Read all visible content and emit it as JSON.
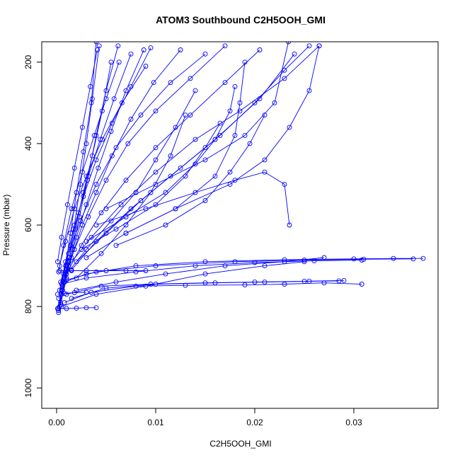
{
  "chart_data": {
    "type": "scatter",
    "title": "ATOM3 Southbound C2H5OOH_GMI",
    "xlabel": "C2H5OOH_GMI",
    "ylabel": "Pressure (mbar)",
    "xlim": [
      -0.0015,
      0.0385
    ],
    "ylim": [
      1050,
      150
    ],
    "y_reversed": true,
    "x_ticks": [
      0.0,
      0.01,
      0.02,
      0.03
    ],
    "x_tick_labels": [
      "0.00",
      "0.01",
      "0.02",
      "0.03"
    ],
    "y_ticks": [
      200,
      400,
      600,
      800,
      1000
    ],
    "y_tick_labels": [
      "200",
      "400",
      "600",
      "800",
      "1000"
    ],
    "grid": false,
    "legend": "none",
    "line_color": "#0000ff",
    "marker": "open-circle",
    "series": [
      {
        "x": [
          0.0002,
          0.0005,
          0.0009,
          0.0014,
          0.002,
          0.0027,
          0.0035,
          0.004
        ],
        "y": [
          810,
          760,
          700,
          620,
          520,
          420,
          300,
          150
        ]
      },
      {
        "x": [
          0.0003,
          0.0008,
          0.0013,
          0.0018,
          0.0024,
          0.003,
          0.0036,
          0.0043
        ],
        "y": [
          800,
          740,
          680,
          600,
          500,
          400,
          290,
          160
        ]
      },
      {
        "x": [
          0.0001,
          0.0006,
          0.0012,
          0.0019,
          0.0027,
          0.0036,
          0.0046,
          0.0055
        ],
        "y": [
          805,
          750,
          690,
          610,
          520,
          430,
          320,
          200
        ]
      },
      {
        "x": [
          0.0004,
          0.001,
          0.0016,
          0.0023,
          0.0031,
          0.004,
          0.005,
          0.0062
        ],
        "y": [
          795,
          730,
          660,
          580,
          490,
          380,
          270,
          160
        ]
      },
      {
        "x": [
          0.0002,
          0.0007,
          0.0014,
          0.0022,
          0.0032,
          0.0044,
          0.0058,
          0.0075
        ],
        "y": [
          780,
          720,
          650,
          570,
          480,
          390,
          290,
          180
        ]
      },
      {
        "x": [
          0.0005,
          0.0012,
          0.002,
          0.003,
          0.0042,
          0.0055,
          0.007,
          0.0088
        ],
        "y": [
          770,
          700,
          630,
          550,
          460,
          370,
          270,
          170
        ]
      },
      {
        "x": [
          0.0003,
          0.0009,
          0.0017,
          0.0027,
          0.004,
          0.0056,
          0.0075,
          0.0095
        ],
        "y": [
          760,
          690,
          610,
          530,
          440,
          350,
          260,
          165
        ]
      },
      {
        "x": [
          0.0006,
          0.0015,
          0.0026,
          0.004,
          0.0056,
          0.0075,
          0.0098,
          0.0125
        ],
        "y": [
          750,
          680,
          600,
          520,
          430,
          340,
          250,
          170
        ]
      },
      {
        "x": [
          0.0004,
          0.0012,
          0.0024,
          0.004,
          0.006,
          0.0085,
          0.0115,
          0.015
        ],
        "y": [
          740,
          670,
          590,
          500,
          410,
          330,
          250,
          180
        ]
      },
      {
        "x": [
          0.0008,
          0.0018,
          0.0032,
          0.005,
          0.0072,
          0.01,
          0.0135,
          0.017
        ],
        "y": [
          730,
          660,
          580,
          490,
          400,
          320,
          240,
          160
        ]
      },
      {
        "x": [
          0.0002,
          0.0007,
          0.0015,
          0.0026,
          0.0038,
          0.005,
          0.0063
        ],
        "y": [
          715,
          650,
          560,
          470,
          380,
          290,
          200
        ]
      },
      {
        "x": [
          0.0001,
          0.0005,
          0.0011,
          0.0018,
          0.0026,
          0.0034,
          0.0041
        ],
        "y": [
          690,
          630,
          550,
          460,
          360,
          260,
          170
        ]
      },
      {
        "x": [
          0.0003,
          0.0009,
          0.0018,
          0.003,
          0.0046,
          0.0066,
          0.009
        ],
        "y": [
          700,
          640,
          560,
          480,
          390,
          300,
          210
        ]
      },
      {
        "x": [
          0.001,
          0.0025,
          0.0045,
          0.007,
          0.01,
          0.0135,
          0.017,
          0.0205
        ],
        "y": [
          720,
          650,
          570,
          490,
          410,
          330,
          250,
          170
        ]
      },
      {
        "x": [
          0.0015,
          0.004,
          0.0075,
          0.0115,
          0.016,
          0.0205,
          0.024
        ],
        "y": [
          710,
          640,
          560,
          480,
          390,
          290,
          180
        ]
      },
      {
        "x": [
          0.0012,
          0.0035,
          0.0065,
          0.01,
          0.014,
          0.0185,
          0.023,
          0.0265
        ],
        "y": [
          700,
          630,
          550,
          470,
          390,
          320,
          240,
          160
        ]
      },
      {
        "x": [
          0.002,
          0.005,
          0.0085,
          0.0125,
          0.0165,
          0.02,
          0.023,
          0.0255
        ],
        "y": [
          690,
          620,
          540,
          460,
          380,
          300,
          220,
          160
        ]
      },
      {
        "x": [
          0.003,
          0.007,
          0.012,
          0.0175,
          0.021,
          0.0235,
          0.0255,
          0.0265
        ],
        "y": [
          680,
          620,
          560,
          500,
          440,
          360,
          270,
          160
        ]
      },
      {
        "x": [
          0.0008,
          0.003,
          0.008,
          0.015,
          0.023,
          0.03,
          0.034,
          0.037
        ],
        "y": [
          740,
          720,
          700,
          690,
          685,
          683,
          682,
          682
        ]
      },
      {
        "x": [
          0.001,
          0.004,
          0.01,
          0.018,
          0.025,
          0.031,
          0.036
        ],
        "y": [
          735,
          715,
          700,
          690,
          686,
          684,
          683
        ]
      },
      {
        "x": [
          0.0005,
          0.003,
          0.008,
          0.014,
          0.02,
          0.026,
          0.0308
        ],
        "y": [
          745,
          730,
          715,
          700,
          692,
          688,
          686
        ]
      },
      {
        "x": [
          0.002,
          0.006,
          0.011,
          0.017,
          0.023,
          0.027
        ],
        "y": [
          760,
          740,
          720,
          700,
          690,
          680
        ]
      },
      {
        "x": [
          0.001,
          0.0045,
          0.0095,
          0.015,
          0.02,
          0.025,
          0.029
        ],
        "y": [
          770,
          750,
          745,
          742,
          740,
          738,
          736
        ]
      },
      {
        "x": [
          0.0008,
          0.0035,
          0.008,
          0.013,
          0.019,
          0.023,
          0.027,
          0.0308
        ],
        "y": [
          790,
          765,
          750,
          748,
          747,
          745,
          742,
          745
        ]
      },
      {
        "x": [
          0.0015,
          0.005,
          0.01,
          0.016,
          0.021,
          0.0255,
          0.0285
        ],
        "y": [
          780,
          755,
          745,
          742,
          740,
          738,
          737
        ]
      },
      {
        "x": [
          0.0005,
          0.004,
          0.009,
          0.015,
          0.021,
          0.025
        ],
        "y": [
          800,
          770,
          750,
          720,
          700,
          690
        ]
      },
      {
        "x": [
          0.0002,
          0.001,
          0.002,
          0.003,
          0.004
        ],
        "y": [
          805,
          805,
          804,
          803,
          803
        ]
      },
      {
        "x": [
          0.0003,
          0.0015,
          0.003,
          0.005,
          0.007,
          0.009
        ],
        "y": [
          712,
          712,
          712,
          712,
          712,
          712
        ]
      },
      {
        "x": [
          0.0001,
          0.0008,
          0.0018,
          0.003
        ],
        "y": [
          770,
          768,
          766,
          765
        ]
      },
      {
        "x": [
          0.004,
          0.009,
          0.014,
          0.018,
          0.021,
          0.023,
          0.0235
        ],
        "y": [
          600,
          560,
          520,
          490,
          470,
          500,
          600
        ]
      },
      {
        "x": [
          0.005,
          0.01,
          0.015,
          0.019,
          0.022,
          0.0234
        ],
        "y": [
          560,
          500,
          440,
          380,
          300,
          150
        ]
      },
      {
        "x": [
          0.007,
          0.012,
          0.016,
          0.018,
          0.0185,
          0.019
        ],
        "y": [
          620,
          560,
          480,
          380,
          300,
          200
        ]
      },
      {
        "x": [
          0.006,
          0.011,
          0.015,
          0.0175,
          0.0195,
          0.021
        ],
        "y": [
          650,
          600,
          540,
          470,
          400,
          330
        ]
      },
      {
        "x": [
          0.003,
          0.007,
          0.011,
          0.014,
          0.016,
          0.0175,
          0.018
        ],
        "y": [
          640,
          580,
          520,
          450,
          390,
          320,
          260
        ]
      },
      {
        "x": [
          0.0025,
          0.006,
          0.01,
          0.013,
          0.015,
          0.0165
        ],
        "y": [
          660,
          610,
          550,
          480,
          410,
          350
        ]
      },
      {
        "x": [
          0.001,
          0.003,
          0.0055,
          0.008,
          0.01,
          0.012,
          0.014
        ],
        "y": [
          720,
          660,
          590,
          520,
          440,
          360,
          270
        ]
      },
      {
        "x": [
          0.002,
          0.0045,
          0.007,
          0.0095,
          0.0115,
          0.013
        ],
        "y": [
          730,
          670,
          600,
          520,
          430,
          330
        ]
      },
      {
        "x": [
          0.0002,
          0.0004,
          0.0006,
          0.0008,
          0.001,
          0.0012
        ],
        "y": [
          815,
          790,
          760,
          730,
          700,
          680
        ]
      }
    ]
  }
}
